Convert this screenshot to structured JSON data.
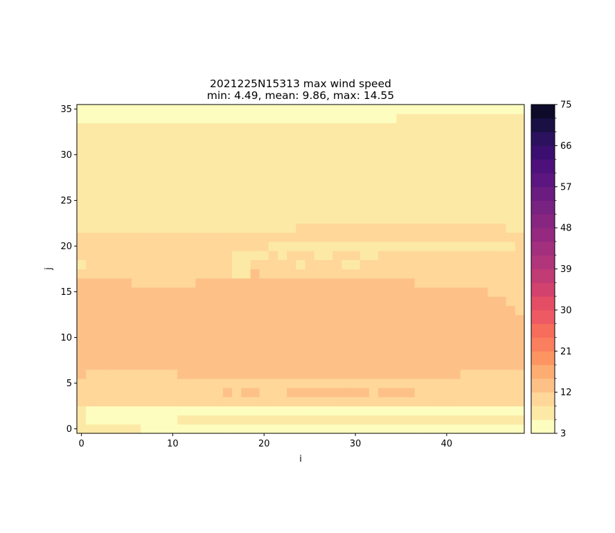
{
  "chart_data": {
    "type": "heatmap",
    "title_line1": "2021225N15313 max wind speed",
    "title_line2": "min: 4.49, mean: 9.86, max: 14.55",
    "xlabel": "i",
    "ylabel": "j",
    "xlim": [
      -0.5,
      48.5
    ],
    "ylim": [
      -0.5,
      35.5
    ],
    "x_ticks": [
      0,
      10,
      20,
      30,
      40
    ],
    "y_ticks": [
      0,
      5,
      10,
      15,
      20,
      25,
      30,
      35
    ],
    "grid": false,
    "colormap": "magma_r",
    "colorbar": {
      "min": 3,
      "max": 75,
      "step": 3,
      "tick_labels": [
        3,
        12,
        21,
        30,
        39,
        48,
        57,
        66,
        75
      ],
      "colors": [
        "#fcfdbf",
        "#fde9a6",
        "#fed799",
        "#fdc187",
        "#fdad72",
        "#fc9561",
        "#fa7f5e",
        "#f66d5c",
        "#ee5a64",
        "#e34e65",
        "#d1426f",
        "#c13b75",
        "#b1357b",
        "#a3307e",
        "#94297f",
        "#872681",
        "#782281",
        "#6a1c81",
        "#5c167f",
        "#4e117b",
        "#3b0f70",
        "#2b115e",
        "#1b1044",
        "#0d0a2a"
      ]
    },
    "value_levels": [
      {
        "level": 0,
        "range": [
          3,
          6
        ],
        "approx_value": 4.5
      },
      {
        "level": 1,
        "range": [
          6,
          9
        ],
        "approx_value": 7.5
      },
      {
        "level": 2,
        "range": [
          9,
          12
        ],
        "approx_value": 10.5
      },
      {
        "level": 3,
        "range": [
          12,
          15
        ],
        "approx_value": 13.5
      }
    ],
    "grid_size": {
      "i": 49,
      "j": 36
    },
    "level_map_j0_to_j35": [
      "1111111000000000000000000000000000000000000000000",
      "1000000000011111111111111111111111111111111111111",
      "1000000000000000000000000000000000000000000000000",
      "2222222222222222222222222222222222222222222222222",
      "2222222222222222323322233333333323333222222222222",
      "2222222222222222222222222222222222222222222222222",
      "3222222222233333333333333333333333333333332222222",
      "3333333333333333333333333333333333333333333333333",
      "3333333333333333333333333333333333333333333333333",
      "3333333333333333333333333333333333333333333333333",
      "3333333333333333333333333333333333333333333333333",
      "3333333333333333333333333333333333333333333333333",
      "3333333333333333333333333333333333333333333333333",
      "3333333333333333333333333333333333333333333333332",
      "3333333333333333333333333333333333333333333333322",
      "3333333333333333333333333333333333333333333332222",
      "3333332222222333333333333333333333333222222222222",
      "2222222222222222211322222222222222222222222222222",
      "1222222222222222211222221222211222222222222222222",
      "2222222222222222211112122211222112222222222222222",
      "2222222222222222222221111111111111111111111111112",
      "2222222222222222222222222222222222222222222222222",
      "1111111111111111111111112222222222222222222222211",
      "1111111111111111111111111111111111111111111111111",
      "1111111111111111111111111111111111111111111111111",
      "1111111111111111111111111111111111111111111111111",
      "1111111111111111111111111111111111111111111111111",
      "1111111111111111111111111111111111111111111111111",
      "1111111111111111111111111111111111111111111111111",
      "1111111111111111111111111111111111111111111111111",
      "1111111111111111111111111111111111111111111111111",
      "1111111111111111111111111111111111111111111111111",
      "1111111111111111111111111111111111111111111111111",
      "1111111111111111111111111111111111111111111111111",
      "0000000000000000000000000000000000011111111111111",
      "0000000000000000000000000000000000000000000000000"
    ]
  }
}
